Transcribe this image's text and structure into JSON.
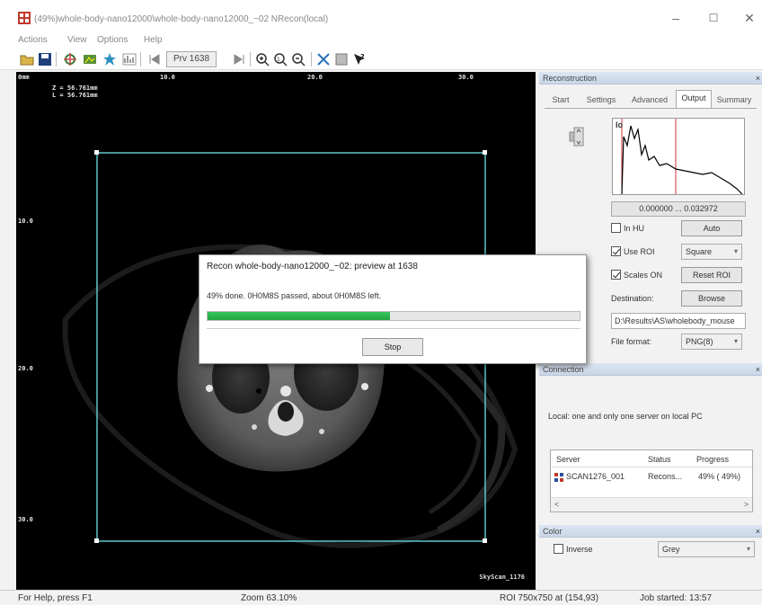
{
  "window": {
    "title": "(49%)whole-body-nano12000\\whole-body-nano12000_~02 NRecon(local)",
    "controls": [
      "–",
      "☐",
      "✕"
    ]
  },
  "menu": {
    "items": [
      "Actions",
      "View",
      "Options",
      "Help"
    ]
  },
  "toolbar": {
    "preview_label": "Prv 1638",
    "icons": [
      "open-icon",
      "save-icon",
      "settings-icon",
      "reconstruct-icon",
      "batch-icon",
      "histogram-icon",
      "first-frame-icon",
      "last-frame-icon",
      "zoom-in-icon",
      "zoom-fit-icon",
      "zoom-out-icon",
      "fit-window-icon",
      "roi-icon",
      "help-icon"
    ]
  },
  "viewer": {
    "ruler_top": [
      "0mm",
      "10.0",
      "20.0",
      "30.0"
    ],
    "ruler_left": [
      "10.0",
      "20.0",
      "30.0"
    ],
    "z_label": "Z = 56.761mm",
    "l_label": "L = 56.761mm",
    "watermark": "SkyScan_1176"
  },
  "dialog": {
    "title": "Recon whole-body-nano12000_~02: preview at 1638",
    "status": "49% done. 0H0M8S passed, about 0H0M8S left.",
    "progress": 0.49,
    "stop_label": "Stop"
  },
  "reconstruction": {
    "header": "Reconstruction",
    "tabs": [
      "Start",
      "Settings",
      "Advanced",
      "Output",
      "Summary"
    ],
    "active_tab": "Output",
    "histogram_label": "lo",
    "range": "0.000000 ... 0.032972",
    "in_hu_label": "In HU",
    "in_hu_checked": false,
    "auto_label": "Auto",
    "use_roi_label": "Use ROI",
    "use_roi_checked": true,
    "roi_shape": "Square",
    "scales_on_label": "Scales ON",
    "scales_on_checked": true,
    "reset_roi_label": "Reset ROI",
    "destination_label": "Destination:",
    "browse_label": "Browse",
    "destination_path": "D:\\Results\\AS\\wholebody_mouse",
    "file_format_label": "File format:",
    "file_format": "PNG(8)"
  },
  "connection": {
    "header": "Connection",
    "text": "Local: one and only one  server on local PC",
    "columns": [
      "Server",
      "Status",
      "Progress"
    ],
    "rows": [
      {
        "server": "SCAN1276_001",
        "status": "Recons...",
        "progress": "49% ( 49%)"
      }
    ]
  },
  "color": {
    "header": "Color",
    "inverse_label": "Inverse",
    "inverse_checked": false,
    "palette": "Grey"
  },
  "statusbar": {
    "help": "For Help, press F1",
    "zoom": "Zoom 63.10%",
    "roi": "ROI 750x750 at (154,93)",
    "job": "Job started: 13:57"
  },
  "colors": {
    "roi_frame": "#5fc6c6",
    "progress_green": "#2bb24c",
    "panel_header": "#c9d6e8"
  }
}
